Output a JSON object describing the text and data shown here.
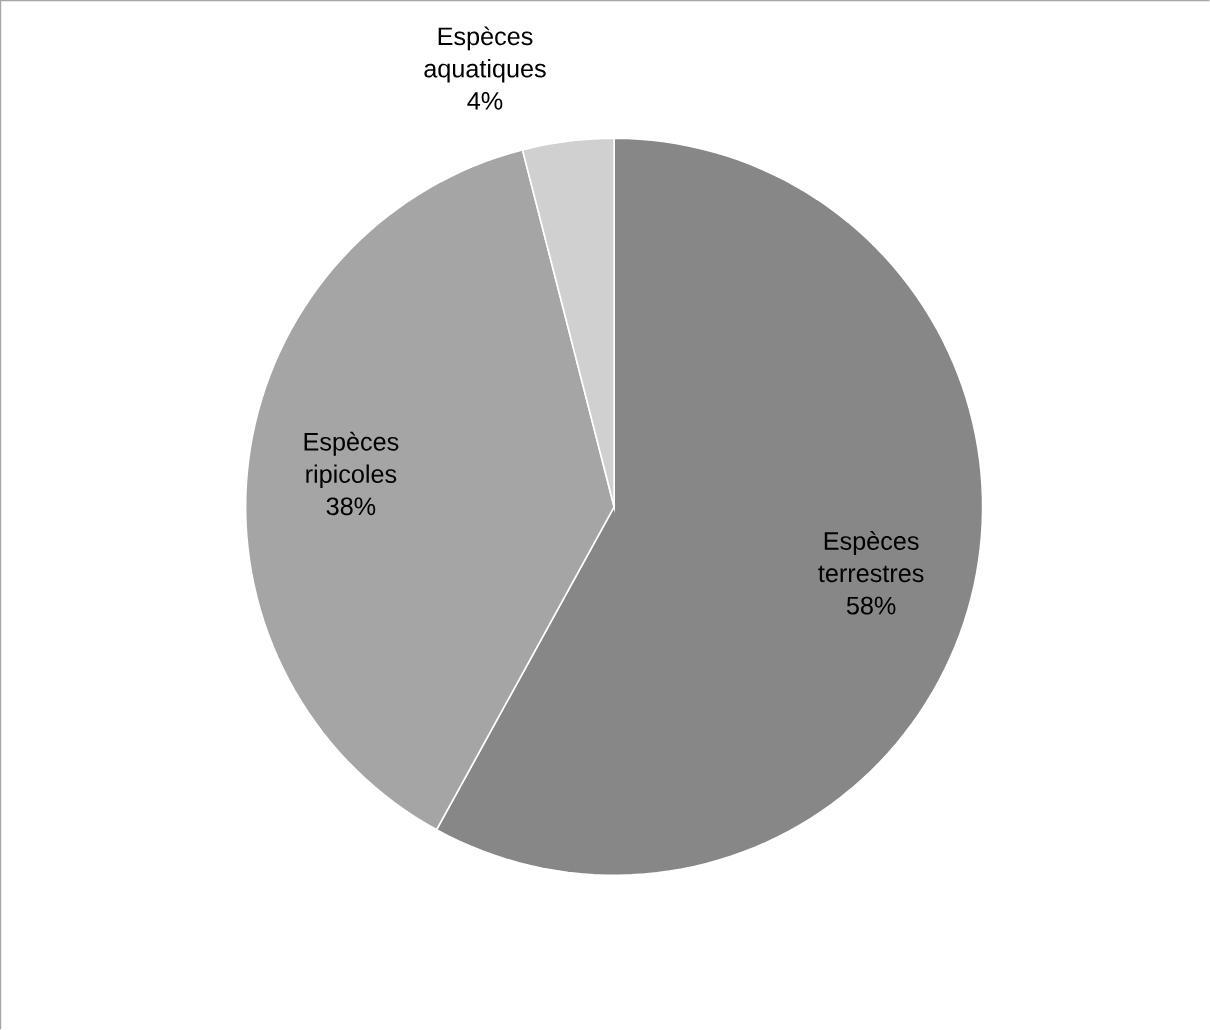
{
  "chart_data": {
    "type": "pie",
    "categories": [
      "Espèces terrestres",
      "Espèces ripicoles",
      "Espèces aquatiques"
    ],
    "values": [
      58,
      38,
      4
    ],
    "colors": [
      "#878787",
      "#a5a5a5",
      "#d0d0d0"
    ],
    "value_labels": [
      "58%",
      "38%",
      "4%"
    ]
  }
}
